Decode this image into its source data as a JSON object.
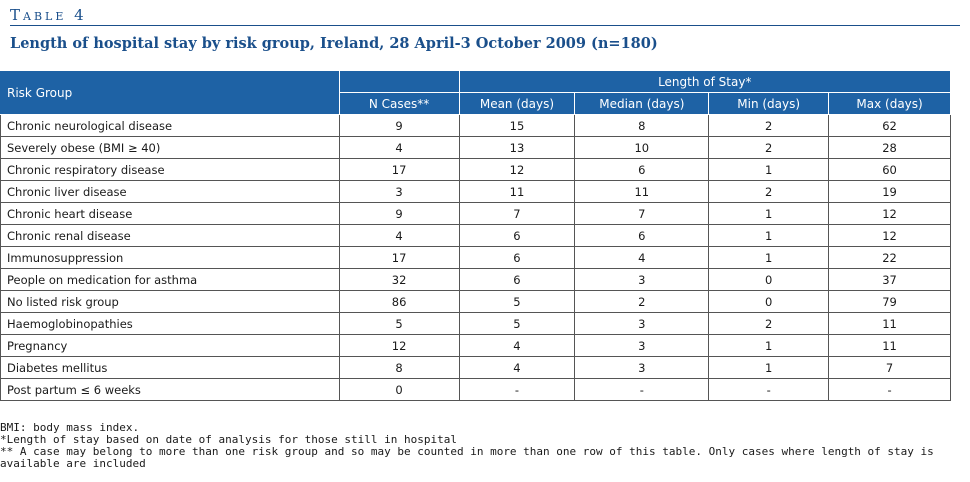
{
  "table_label": "Table 4",
  "table_title": "Length of hospital stay by risk group, Ireland, 28 April-3 October 2009 (n=180)",
  "header": {
    "risk_group": "Risk Group",
    "length_of_stay": "Length of Stay*",
    "n_cases": "N Cases**",
    "mean": "Mean (days)",
    "median": "Median (days)",
    "min": "Min (days)",
    "max": "Max (days)"
  },
  "rows": [
    {
      "group": "Chronic neurological disease",
      "n": "9",
      "mean": "15",
      "median": "8",
      "min": "2",
      "max": "62"
    },
    {
      "group": "Severely obese (BMI ≥ 40)",
      "n": "4",
      "mean": "13",
      "median": "10",
      "min": "2",
      "max": "28"
    },
    {
      "group": "Chronic respiratory disease",
      "n": "17",
      "mean": "12",
      "median": "6",
      "min": "1",
      "max": "60"
    },
    {
      "group": "Chronic liver disease",
      "n": "3",
      "mean": "11",
      "median": "11",
      "min": "2",
      "max": "19"
    },
    {
      "group": "Chronic heart disease",
      "n": "9",
      "mean": "7",
      "median": "7",
      "min": "1",
      "max": "12"
    },
    {
      "group": "Chronic renal disease",
      "n": "4",
      "mean": "6",
      "median": "6",
      "min": "1",
      "max": "12"
    },
    {
      "group": "Immunosuppression",
      "n": "17",
      "mean": "6",
      "median": "4",
      "min": "1",
      "max": "22"
    },
    {
      "group": "People on medication for asthma",
      "n": "32",
      "mean": "6",
      "median": "3",
      "min": "0",
      "max": "37"
    },
    {
      "group": "No listed risk group",
      "n": "86",
      "mean": "5",
      "median": "2",
      "min": "0",
      "max": "79"
    },
    {
      "group": "Haemoglobinopathies",
      "n": "5",
      "mean": "5",
      "median": "3",
      "min": "2",
      "max": "11"
    },
    {
      "group": "Pregnancy",
      "n": "12",
      "mean": "4",
      "median": "3",
      "min": "1",
      "max": "11"
    },
    {
      "group": "Diabetes mellitus",
      "n": "8",
      "mean": "4",
      "median": "3",
      "min": "1",
      "max": "7"
    },
    {
      "group": "Post partum ≤ 6 weeks",
      "n": "0",
      "mean": "-",
      "median": "-",
      "min": "-",
      "max": "-"
    }
  ],
  "notes": [
    "BMI: body mass index.",
    "*Length of stay based on date of analysis for those still in hospital",
    "** A case may belong to more than one risk group and so may be counted in more than one row of this table. Only cases where length of stay is available are included"
  ],
  "colors": {
    "header_bg": "#1e62a5",
    "title": "#1a4f8b"
  }
}
